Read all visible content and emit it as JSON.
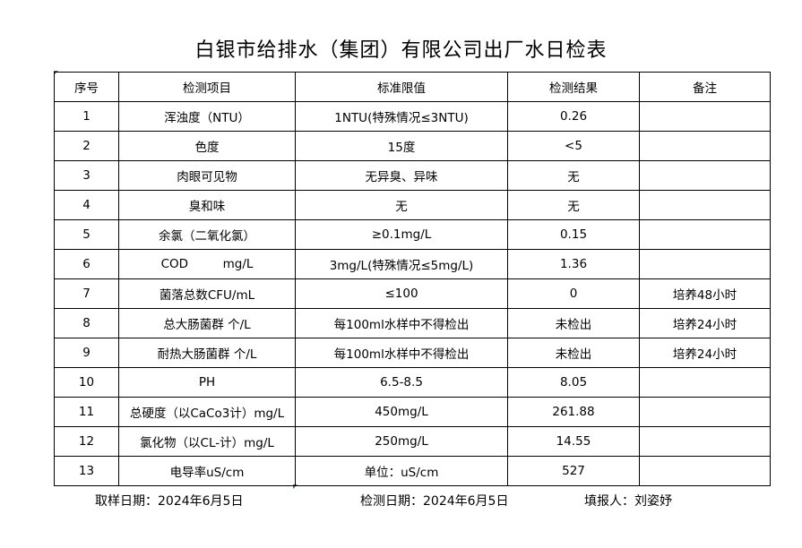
{
  "title": "白银市给排水（集团）有限公司出厂水日检表",
  "headers": [
    "序号",
    "检测项目",
    "标准限值",
    "检测结果",
    "备注"
  ],
  "rows": [
    [
      "1",
      "浑浊度（NTU）",
      "1NTU(特殊情况≤3NTU)",
      "0.26",
      ""
    ],
    [
      "2",
      "色度",
      "15度",
      "<5",
      ""
    ],
    [
      "3",
      "肉眼可见物",
      "无异臭、异味",
      "无",
      ""
    ],
    [
      "4",
      "臭和味",
      "无",
      "无",
      ""
    ],
    [
      "5",
      "余氯（二氧化氯）",
      "≥0.1mg/L",
      "0.15",
      ""
    ],
    [
      "6",
      "COD         mg/L",
      "3mg/L(特殊情况≤5mg/L)",
      "1.36",
      ""
    ],
    [
      "7",
      "菌落总数CFU/mL",
      "≤100",
      "0",
      "培养48小时"
    ],
    [
      "8",
      "总大肠菌群 个/L",
      "每100ml水样中不得检出",
      "未检出",
      "培养24小时"
    ],
    [
      "9",
      "耐热大肠菌群 个/L",
      "每100ml水样中不得检出",
      "未检出",
      "培养24小时"
    ],
    [
      "10",
      "PH",
      "6.5-8.5",
      "8.05",
      ""
    ],
    [
      "11",
      "总硬度（以CaCo3计）mg/L",
      "450mg/L",
      "261.88",
      ""
    ],
    [
      "12",
      "氯化物（以CL-计）mg/L",
      "250mg/L",
      "14.55",
      ""
    ],
    [
      "13",
      "电导率uS/cm",
      "单位：uS/cm",
      "527",
      ""
    ]
  ],
  "footer": {
    "sampling_date": "取样日期：2024年6月5日",
    "testing_date": "检测日期：2024年6月5日",
    "reporter": "填报人：刘姿妤"
  }
}
